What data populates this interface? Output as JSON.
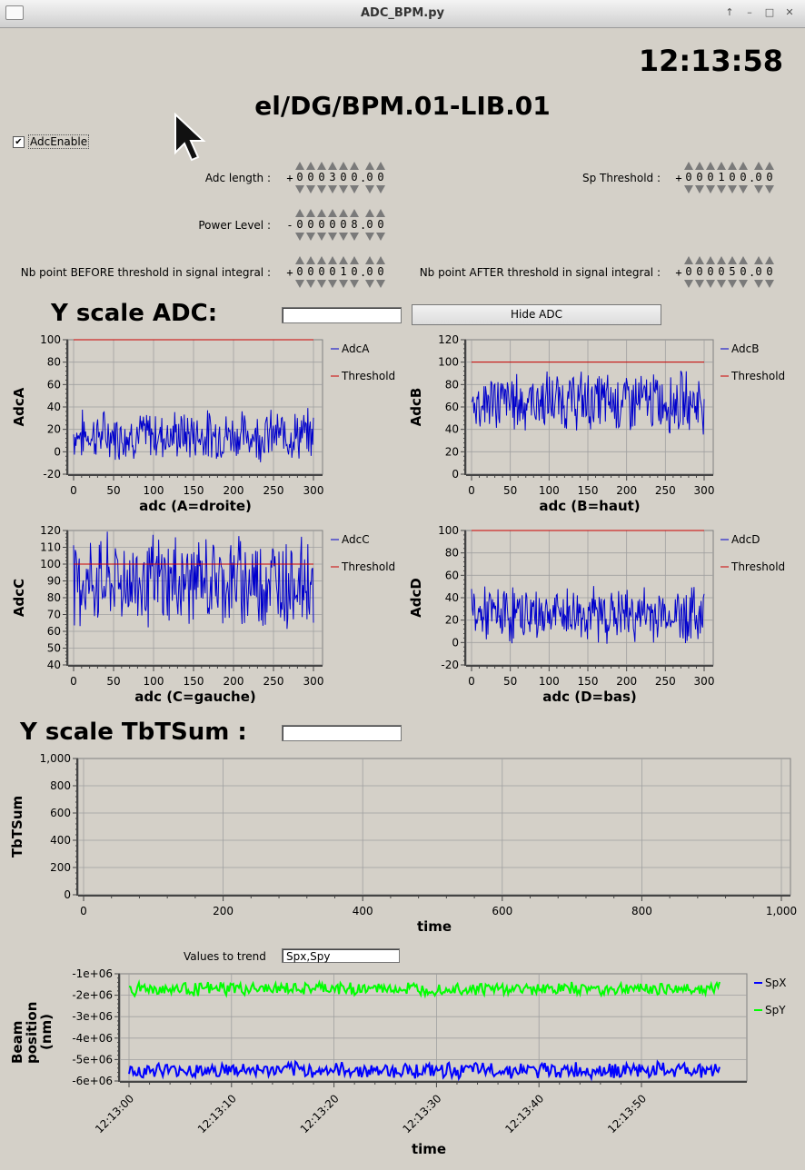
{
  "window": {
    "title": "ADC_BPM.py"
  },
  "clock": "12:13:58",
  "device": "el/DG/BPM.01-LIB.01",
  "adc_enable": {
    "label": "AdcEnable",
    "checked": true
  },
  "fields": {
    "adc_length": {
      "label": "Adc length :",
      "sign": "+",
      "int": "000300",
      "dec": "00"
    },
    "sp_threshold": {
      "label": "Sp Threshold :",
      "sign": "+",
      "int": "000100",
      "dec": "00"
    },
    "power_level": {
      "label": "Power Level :",
      "sign": "-",
      "int": "000008",
      "dec": "00"
    },
    "nb_before": {
      "label": "Nb point BEFORE threshold in signal integral :",
      "sign": "+",
      "int": "000010",
      "dec": "00"
    },
    "nb_after": {
      "label": "Nb point AFTER threshold in signal integral :",
      "sign": "+",
      "int": "000050",
      "dec": "00"
    }
  },
  "yscale_adc": {
    "label": "Y scale ADC:",
    "value": ""
  },
  "hide_adc_button": "Hide ADC",
  "yscale_tbt": {
    "label": "Y scale TbTSum :",
    "value": ""
  },
  "trend": {
    "label": "Values to trend",
    "value": "Spx,Spy"
  },
  "colors": {
    "adc_line": "#0000cc",
    "threshold": "#cc0000",
    "spx": "#0000ff",
    "spy": "#00ff00",
    "grid": "#a0a0a0"
  },
  "chart_data": [
    {
      "type": "line",
      "ylabel": "AdcA",
      "xlabel": "adc  (A=droite)",
      "xlim": [
        0,
        300
      ],
      "ylim": [
        -20,
        100
      ],
      "xticks": [
        "0",
        "50",
        "100",
        "150",
        "200",
        "250",
        "300"
      ],
      "yticks": [
        "-20",
        "0",
        "20",
        "40",
        "60",
        "80",
        "100"
      ],
      "series": [
        {
          "name": "AdcA",
          "mean": 15,
          "spread": 18
        },
        {
          "name": "Threshold",
          "values": [
            100,
            100
          ]
        }
      ]
    },
    {
      "type": "line",
      "ylabel": "AdcB",
      "xlabel": "adc  (B=haut)",
      "xlim": [
        0,
        300
      ],
      "ylim": [
        0,
        120
      ],
      "xticks": [
        "0",
        "50",
        "100",
        "150",
        "200",
        "250",
        "300"
      ],
      "yticks": [
        "0",
        "20",
        "40",
        "60",
        "80",
        "100",
        "120"
      ],
      "series": [
        {
          "name": "AdcB",
          "mean": 65,
          "spread": 22
        },
        {
          "name": "Threshold",
          "values": [
            100,
            100
          ]
        }
      ]
    },
    {
      "type": "line",
      "ylabel": "AdcC",
      "xlabel": "adc  (C=gauche)",
      "xlim": [
        0,
        300
      ],
      "ylim": [
        40,
        120
      ],
      "xticks": [
        "0",
        "50",
        "100",
        "150",
        "200",
        "250",
        "300"
      ],
      "yticks": [
        "40",
        "50",
        "60",
        "70",
        "80",
        "90",
        "100",
        "110",
        "120"
      ],
      "series": [
        {
          "name": "AdcC",
          "mean": 90,
          "spread": 22
        },
        {
          "name": "Threshold",
          "values": [
            100,
            100
          ]
        }
      ]
    },
    {
      "type": "line",
      "ylabel": "AdcD",
      "xlabel": "adc  (D=bas)",
      "xlim": [
        0,
        300
      ],
      "ylim": [
        -20,
        100
      ],
      "xticks": [
        "0",
        "50",
        "100",
        "150",
        "200",
        "250",
        "300"
      ],
      "yticks": [
        "-20",
        "0",
        "20",
        "40",
        "60",
        "80",
        "100"
      ],
      "series": [
        {
          "name": "AdcD",
          "mean": 25,
          "spread": 20
        },
        {
          "name": "Threshold",
          "values": [
            100,
            100
          ]
        }
      ]
    },
    {
      "type": "line",
      "ylabel": "TbTSum",
      "xlabel": "time",
      "xlim": [
        0,
        1000
      ],
      "ylim": [
        0,
        1000
      ],
      "xticks": [
        "0",
        "200",
        "400",
        "600",
        "800",
        "1,000"
      ],
      "yticks": [
        "0",
        "200",
        "400",
        "600",
        "800",
        "1,000"
      ],
      "series": []
    },
    {
      "type": "line",
      "ylabel": "Beam position (nm)",
      "xlabel": "time",
      "ylim": [
        -6000000,
        -1000000
      ],
      "xticks": [
        "12:13:00",
        "12:13:10",
        "12:13:20",
        "12:13:30",
        "12:13:40",
        "12:13:50"
      ],
      "yticks": [
        "-6e+06",
        "-5e+06",
        "-4e+06",
        "-3e+06",
        "-2e+06",
        "-1e+06"
      ],
      "series": [
        {
          "name": "SpX",
          "mean": -5500000,
          "spread": 300000
        },
        {
          "name": "SpY",
          "mean": -1700000,
          "spread": 250000
        }
      ]
    }
  ]
}
